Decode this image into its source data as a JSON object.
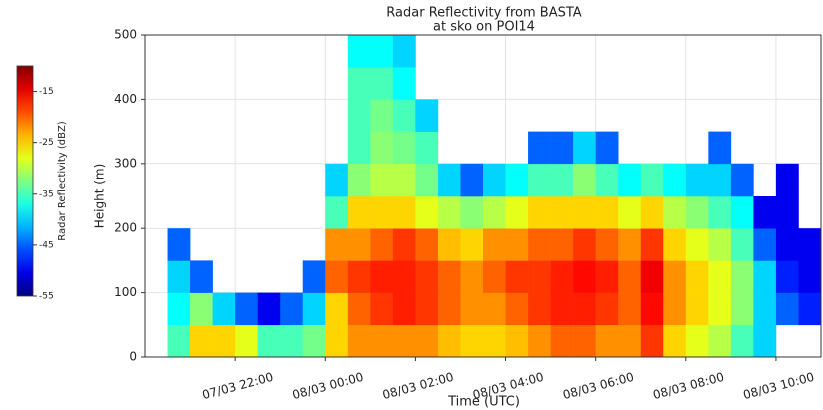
{
  "chart_data": {
    "type": "heatmap",
    "title": "Radar Reflectivity from BASTA",
    "subtitle": "at sko on POI14",
    "x_label": "Time (UTC)",
    "y_label": "Height (m)",
    "colorbar_label": "Radar Reflectivity (dBZ)",
    "colormap": "jet",
    "clim": [
      -55,
      -10
    ],
    "cticks": [
      -55,
      -45,
      -35,
      -25,
      -15
    ],
    "xlim": [
      20,
      35
    ],
    "xticks": [
      {
        "value": 22,
        "label": "07/03 22:00"
      },
      {
        "value": 24,
        "label": "08/03 00:00"
      },
      {
        "value": 26,
        "label": "08/03 02:00"
      },
      {
        "value": 28,
        "label": "08/03 04:00"
      },
      {
        "value": 30,
        "label": "08/03 06:00"
      },
      {
        "value": 32,
        "label": "08/03 08:00"
      },
      {
        "value": 34,
        "label": "08/03 10:00"
      }
    ],
    "ylim": [
      0,
      500
    ],
    "yticks": [
      0,
      100,
      200,
      300,
      400,
      500
    ],
    "grid": true,
    "x_bins": [
      20.5,
      21,
      21.5,
      22,
      22.5,
      23,
      23.5,
      24,
      24.5,
      25,
      25.5,
      26,
      26.5,
      27,
      27.5,
      28,
      28.5,
      29,
      29.5,
      30,
      30.5,
      31,
      31.5,
      32,
      32.5,
      33,
      33.5,
      34,
      34.5,
      35
    ],
    "y_bins": [
      0,
      50,
      100,
      150,
      200,
      250,
      300,
      350,
      400,
      450,
      500
    ],
    "values": [
      [
        -35,
        -38,
        -40,
        -45,
        null,
        null,
        null,
        null,
        null,
        null
      ],
      [
        -25,
        -32,
        -45,
        null,
        null,
        null,
        null,
        null,
        null,
        null
      ],
      [
        -25,
        -40,
        null,
        null,
        null,
        null,
        null,
        null,
        null,
        null
      ],
      [
        -28,
        -45,
        null,
        null,
        null,
        null,
        null,
        null,
        null,
        null
      ],
      [
        -35,
        -50,
        null,
        null,
        null,
        null,
        null,
        null,
        null,
        null
      ],
      [
        -35,
        -45,
        null,
        null,
        null,
        null,
        null,
        null,
        null,
        null
      ],
      [
        -33,
        -40,
        -45,
        null,
        null,
        null,
        null,
        null,
        null,
        null
      ],
      [
        -25,
        -25,
        -20,
        -22,
        -35,
        -40,
        null,
        null,
        null,
        null
      ],
      [
        -22,
        -20,
        -18,
        -22,
        -25,
        -32,
        -35,
        -35,
        -35,
        -38
      ],
      [
        -22,
        -18,
        -17,
        -20,
        -25,
        -30,
        -32,
        -33,
        -35,
        -38
      ],
      [
        -22,
        -17,
        -17,
        -18,
        -25,
        -30,
        -33,
        -35,
        -38,
        -40
      ],
      [
        -22,
        -18,
        -18,
        -20,
        -28,
        -33,
        -35,
        -40,
        null,
        null
      ],
      [
        -24,
        -20,
        -20,
        -24,
        -30,
        -40,
        null,
        null,
        null,
        null
      ],
      [
        -25,
        -22,
        -22,
        -25,
        -32,
        -45,
        null,
        null,
        null,
        null
      ],
      [
        -25,
        -22,
        -20,
        -22,
        -30,
        -40,
        null,
        null,
        null,
        null
      ],
      [
        -24,
        -20,
        -18,
        -22,
        -28,
        -38,
        null,
        null,
        null,
        null
      ],
      [
        -22,
        -18,
        -18,
        -20,
        -25,
        -35,
        -45,
        null,
        null,
        null
      ],
      [
        -20,
        -17,
        -17,
        -20,
        -25,
        -35,
        -45,
        null,
        null,
        null
      ],
      [
        -20,
        -17,
        -16,
        -18,
        -25,
        -32,
        -40,
        null,
        null,
        null
      ],
      [
        -22,
        -18,
        -17,
        -20,
        -25,
        -35,
        -45,
        null,
        null,
        null
      ],
      [
        -22,
        -20,
        -20,
        -22,
        -28,
        -38,
        null,
        null,
        null,
        null
      ],
      [
        -18,
        -16,
        -15,
        -18,
        -25,
        -35,
        null,
        null,
        null,
        null
      ],
      [
        -25,
        -22,
        -22,
        -25,
        -30,
        -38,
        null,
        null,
        null,
        null
      ],
      [
        -28,
        -25,
        -25,
        -28,
        -32,
        -40,
        null,
        null,
        null,
        null
      ],
      [
        -30,
        -28,
        -28,
        -30,
        -35,
        -40,
        -45,
        null,
        null,
        null
      ],
      [
        -35,
        -32,
        -32,
        -35,
        -38,
        -45,
        null,
        null,
        null,
        null
      ],
      [
        -40,
        -40,
        -40,
        -45,
        -50,
        null,
        null,
        null,
        null,
        null
      ],
      [
        null,
        -45,
        -48,
        -50,
        -50,
        -50,
        null,
        null,
        null,
        null
      ],
      [
        null,
        -48,
        -50,
        -50,
        null,
        null,
        null,
        null,
        null,
        null
      ]
    ]
  }
}
